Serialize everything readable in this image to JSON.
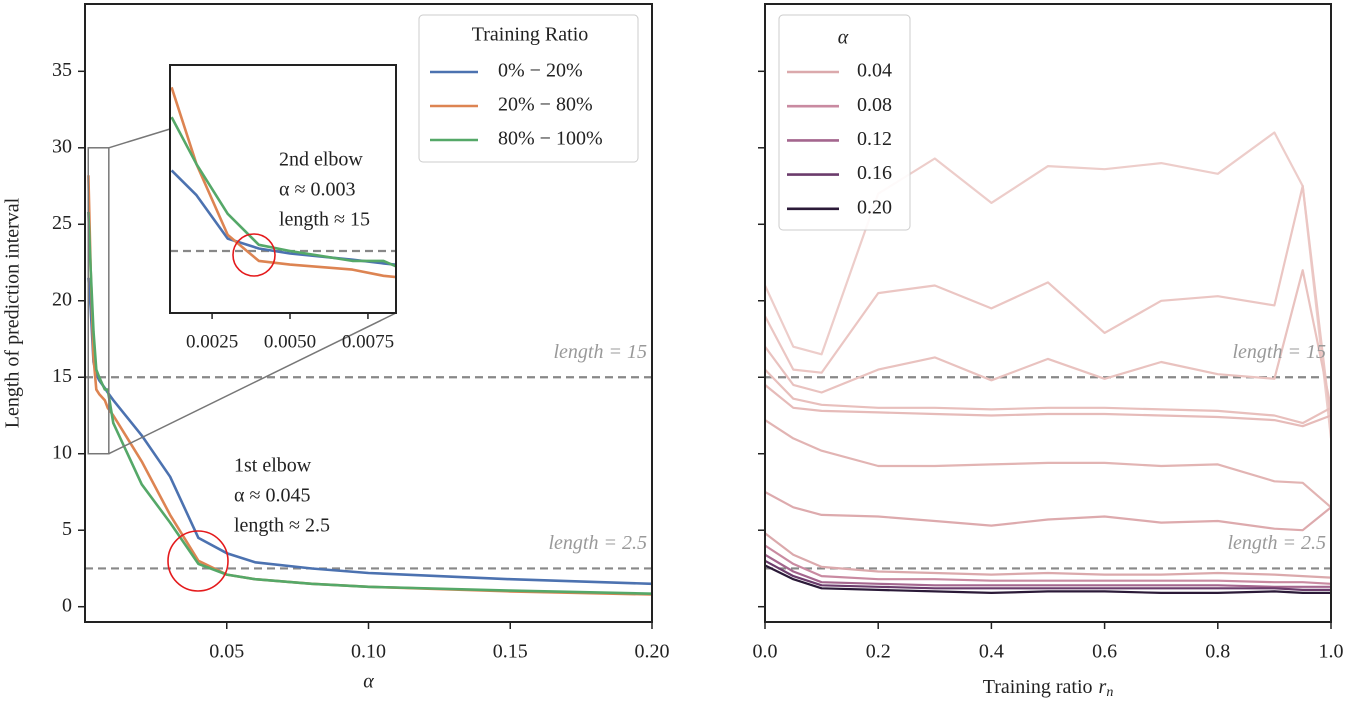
{
  "chart_data": [
    {
      "type": "line",
      "ylabel": "Length of prediction  interval",
      "xlabel": "α",
      "xlim": [
        0,
        0.2
      ],
      "ylim": [
        -1,
        39.4
      ],
      "xticks": [
        0.05,
        {
          "value": 0.1,
          "label": "0.10"
        },
        0.15,
        {
          "value": 0.2,
          "label": "0.20"
        }
      ],
      "yticks": [
        0,
        5,
        10,
        15,
        20,
        25,
        30,
        35
      ],
      "legend_title": "Training Ratio",
      "legend": "upper right",
      "x": [
        0.0012,
        0.002,
        0.003,
        0.004,
        0.005,
        0.007,
        0.008,
        0.01,
        0.02,
        0.03,
        0.04,
        0.05,
        0.06,
        0.08,
        0.1,
        0.15,
        0.2
      ],
      "series": [
        {
          "name": "0% − 20%",
          "color": "#4c72b0",
          "values": [
            21.5,
            19.5,
            16,
            15.2,
            14.8,
            14.3,
            14,
            13.5,
            11.2,
            8.5,
            4.5,
            3.5,
            2.9,
            2.5,
            2.2,
            1.8,
            1.5
          ]
        },
        {
          "name": "20% − 80%",
          "color": "#dd8452",
          "values": [
            28.2,
            22,
            16.3,
            14.2,
            13.9,
            13.5,
            13,
            12.5,
            9.5,
            6,
            3,
            2.1,
            1.8,
            1.5,
            1.3,
            1,
            0.8
          ]
        },
        {
          "name": "80% − 100%",
          "color": "#55a868",
          "values": [
            25.8,
            22,
            18,
            15.5,
            15,
            14.2,
            14.2,
            12,
            8,
            5.5,
            2.8,
            2.1,
            1.8,
            1.5,
            1.3,
            1.05,
            0.85
          ]
        }
      ],
      "hlines": [
        {
          "value": 15,
          "label": "length = 15"
        },
        {
          "value": 2.5,
          "label": "length = 2.5"
        }
      ],
      "annotation": [
        "1st elbow",
        "α ≈ 0.045",
        "length ≈ 2.5"
      ]
    },
    {
      "type": "inset",
      "xlim": [
        0.00115,
        0.0084
      ],
      "ylim": [
        10,
        30
      ],
      "xticks": [
        0.0025,
        {
          "value": 0.005,
          "label": "0.0050"
        },
        0.0075
      ],
      "hlines": [
        {
          "value": 15
        }
      ],
      "annotation": [
        "2nd elbow",
        "α ≈ 0.003",
        "length ≈ 15"
      ]
    },
    {
      "type": "line",
      "xlabel": {
        "text": "Training ratio",
        "var": "r",
        "sub": "n"
      },
      "xlim": [
        0,
        1
      ],
      "xticks": [
        {
          "value": 0,
          "label": "0.0"
        },
        0.2,
        0.4,
        0.6,
        0.8,
        {
          "value": 1,
          "label": "1.0"
        }
      ],
      "legend_title": "α",
      "legend": "upper left",
      "x": [
        0,
        0.05,
        0.1,
        0.2,
        0.3,
        0.4,
        0.5,
        0.6,
        0.7,
        0.8,
        0.9,
        0.95,
        1
      ],
      "series": [
        {
          "color": "#edcdca",
          "values": [
            21,
            17,
            16.5,
            27,
            29.3,
            26.4,
            28.8,
            28.6,
            29,
            28.3,
            31,
            27.5,
            11
          ]
        },
        {
          "color": "#ebc6c3",
          "values": [
            19,
            15.5,
            15.3,
            20.5,
            21,
            19.5,
            21.2,
            17.9,
            20,
            20.3,
            19.7,
            27.5,
            12
          ]
        },
        {
          "color": "#e9c2bf",
          "values": [
            17,
            14.5,
            14,
            15.5,
            16.3,
            14.8,
            16.2,
            14.9,
            16,
            15.2,
            14.9,
            22,
            13
          ]
        },
        {
          "color": "#e8bfbc",
          "values": [
            15.5,
            13.6,
            13.2,
            13,
            13,
            12.9,
            13,
            13,
            12.9,
            12.8,
            12.5,
            12,
            13
          ]
        },
        {
          "color": "#e6bbb9",
          "values": [
            14.5,
            13,
            12.8,
            12.7,
            12.6,
            12.5,
            12.6,
            12.6,
            12.5,
            12.4,
            12.2,
            11.8,
            12.5
          ]
        },
        {
          "color": "#e2b4b3",
          "values": [
            12.2,
            11,
            10.2,
            9.2,
            9.2,
            9.3,
            9.4,
            9.4,
            9.2,
            9.3,
            8.2,
            8.1,
            6.5
          ]
        },
        {
          "color": "#ddaaad",
          "values": [
            7.5,
            6.5,
            6,
            5.9,
            5.6,
            5.3,
            5.7,
            5.9,
            5.5,
            5.6,
            5.1,
            5,
            6.5
          ]
        },
        {
          "name": "0.04",
          "color": "#dba9ac",
          "values": [
            4.8,
            3.4,
            2.6,
            2.3,
            2.2,
            2.1,
            2.2,
            2.1,
            2.1,
            2.2,
            2.1,
            2,
            1.9
          ]
        },
        {
          "name": "0.08",
          "color": "#c98aa1",
          "values": [
            4,
            2.8,
            2,
            1.8,
            1.8,
            1.7,
            1.7,
            1.7,
            1.7,
            1.7,
            1.6,
            1.6,
            1.5
          ]
        },
        {
          "name": "0.12",
          "color": "#a4668e",
          "values": [
            3.4,
            2.3,
            1.6,
            1.5,
            1.4,
            1.4,
            1.4,
            1.4,
            1.4,
            1.4,
            1.3,
            1.3,
            1.3
          ]
        },
        {
          "name": "0.16",
          "color": "#6b3c6c",
          "values": [
            3,
            2,
            1.4,
            1.3,
            1.2,
            1.2,
            1.2,
            1.2,
            1.2,
            1.2,
            1.2,
            1.1,
            1.1
          ]
        },
        {
          "name": "0.20",
          "color": "#2b1a38",
          "values": [
            2.7,
            1.8,
            1.2,
            1.1,
            1,
            0.9,
            1,
            1,
            0.9,
            0.9,
            1,
            0.9,
            0.9
          ]
        }
      ],
      "hlines": [
        {
          "value": 15,
          "label": "length = 15"
        },
        {
          "value": 2.5,
          "label": "length = 2.5"
        }
      ]
    }
  ]
}
